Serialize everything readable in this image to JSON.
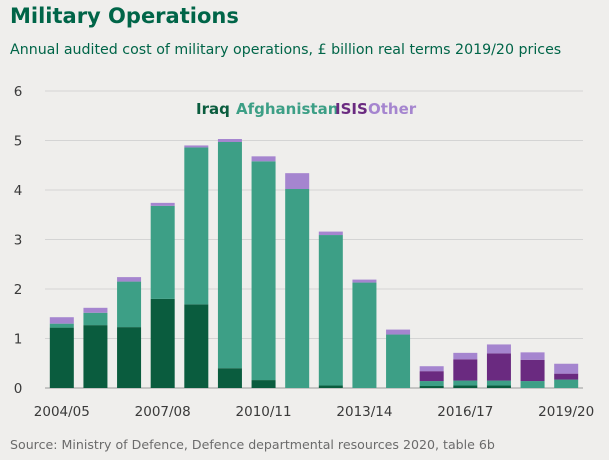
{
  "title": "Military Operations",
  "subtitle": "Annual audited cost of military operations, £ billion real terms 2019/20 prices",
  "source": "Source: Ministry of Defence, Defence departmental resources 2020, table 6b",
  "colors": {
    "Iraq": "#0a5c3e",
    "Afghanistan": "#3d9f86",
    "ISIS": "#6a2a80",
    "Other": "#a585cf",
    "grid": "#d4d4d4",
    "text": "#006548"
  },
  "chart_data": {
    "type": "bar",
    "stacked": true,
    "categories": [
      "2004/05",
      "2005/06",
      "2006/07",
      "2007/08",
      "2008/09",
      "2009/10",
      "2010/11",
      "2011/12",
      "2012/13",
      "2013/14",
      "2014/15",
      "2015/16",
      "2016/17",
      "2017/18",
      "2018/19",
      "2019/20"
    ],
    "xtick_labels": [
      "2004/05",
      "",
      "",
      "2007/08",
      "",
      "",
      "2010/11",
      "",
      "",
      "2013/14",
      "",
      "",
      "2016/17",
      "",
      "",
      "2019/20"
    ],
    "series": [
      {
        "name": "Iraq",
        "values": [
          1.22,
          1.27,
          1.23,
          1.8,
          1.69,
          0.4,
          0.16,
          0.0,
          0.05,
          0.0,
          0.0,
          0.04,
          0.05,
          0.05,
          0.0,
          0.0
        ]
      },
      {
        "name": "Afghanistan",
        "values": [
          0.08,
          0.25,
          0.92,
          1.88,
          3.17,
          4.57,
          4.42,
          4.02,
          3.04,
          2.13,
          1.08,
          0.1,
          0.1,
          0.1,
          0.14,
          0.17
        ]
      },
      {
        "name": "ISIS",
        "values": [
          0.0,
          0.0,
          0.0,
          0.0,
          0.0,
          0.0,
          0.0,
          0.0,
          0.0,
          0.0,
          0.0,
          0.2,
          0.43,
          0.55,
          0.43,
          0.12
        ]
      },
      {
        "name": "Other",
        "values": [
          0.13,
          0.1,
          0.09,
          0.06,
          0.04,
          0.06,
          0.1,
          0.32,
          0.07,
          0.06,
          0.1,
          0.1,
          0.13,
          0.18,
          0.15,
          0.2
        ]
      }
    ],
    "title": "",
    "xlabel": "",
    "ylabel": "",
    "ylim": [
      0,
      6
    ],
    "yticks": [
      0,
      1,
      2,
      3,
      4,
      5,
      6
    ],
    "grid": true,
    "legend_position": "top-center"
  }
}
